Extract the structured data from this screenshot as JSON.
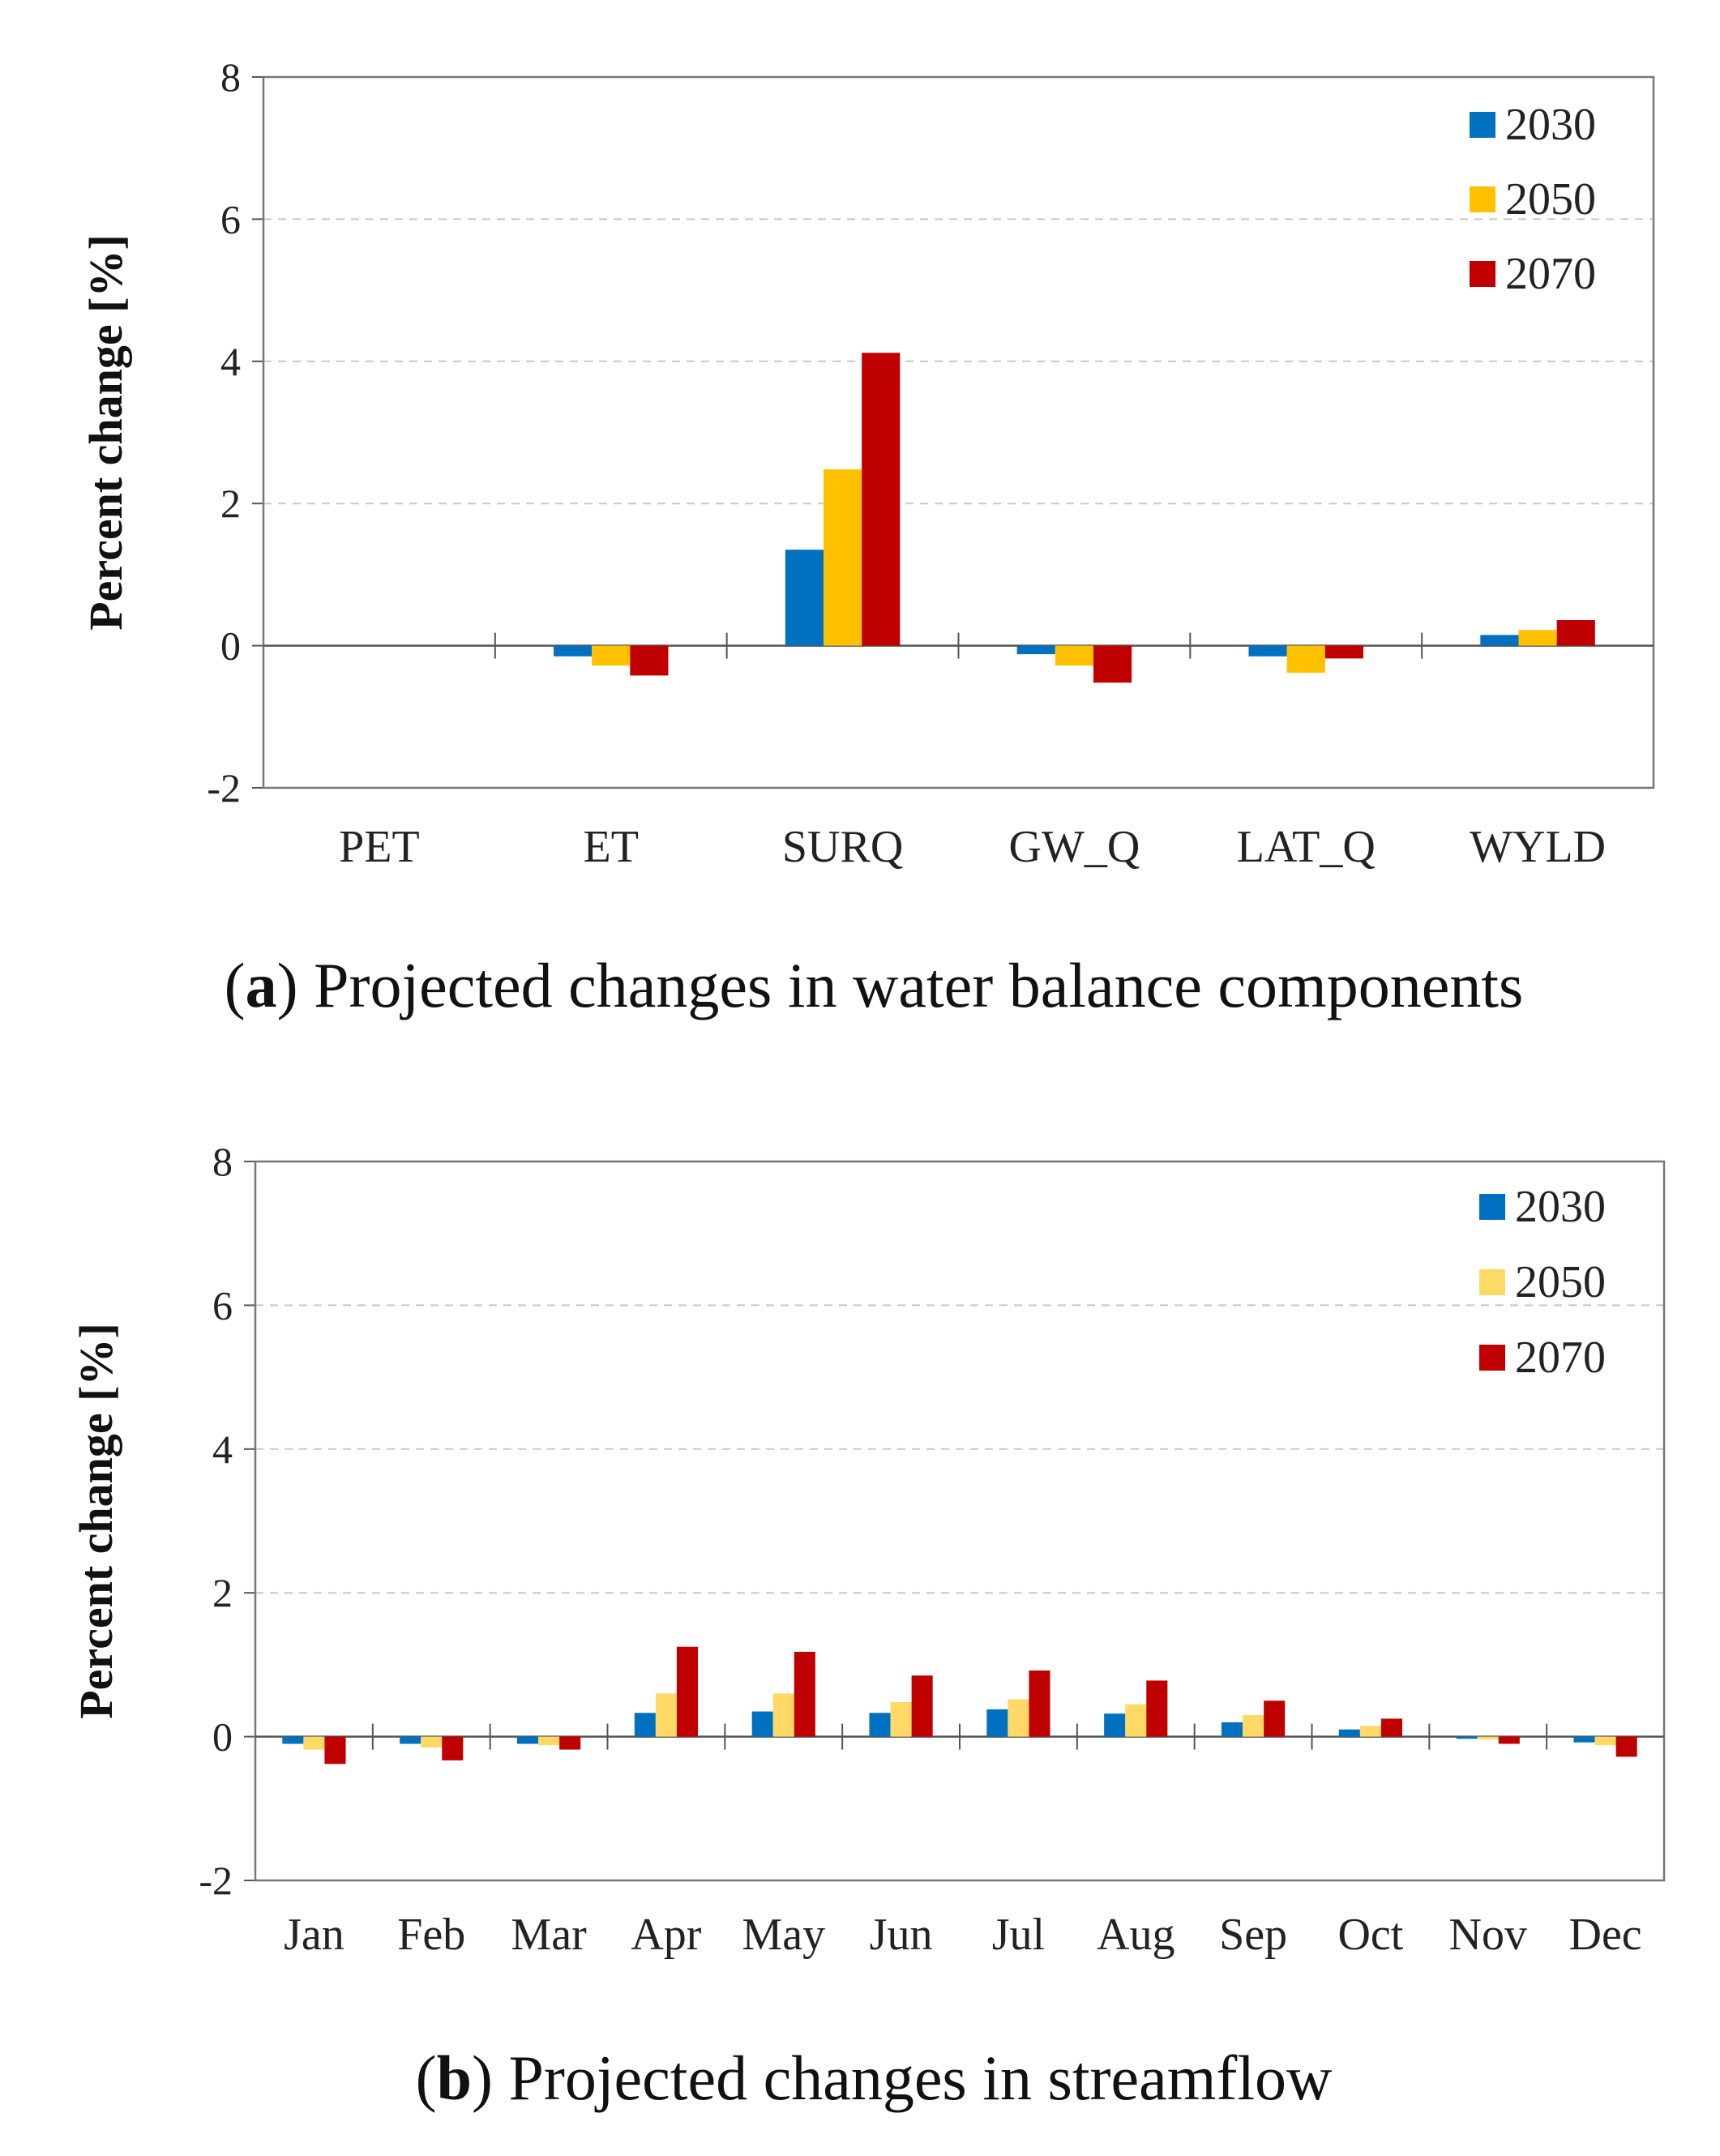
{
  "chart_data": [
    {
      "type": "bar",
      "caption_letter": "a",
      "caption_text": "Projected changes in water balance components",
      "ylabel": "Percent change [%]",
      "ylim": [
        -2,
        8
      ],
      "yticks": [
        "-2",
        "0",
        "2",
        "4",
        "6",
        "8"
      ],
      "grid": true,
      "legend_position": "top-right",
      "categories": [
        "PET",
        "ET",
        "SURQ",
        "GW_Q",
        "LAT_Q",
        "WYLD"
      ],
      "series": [
        {
          "name": "2030",
          "color": "#0070C0",
          "values": [
            0,
            -0.15,
            1.35,
            -0.12,
            -0.15,
            0.15
          ]
        },
        {
          "name": "2050",
          "color": "#FFC000",
          "values": [
            0,
            -0.28,
            2.48,
            -0.28,
            -0.38,
            0.22
          ]
        },
        {
          "name": "2070",
          "color": "#C00000",
          "values": [
            0,
            -0.42,
            4.12,
            -0.52,
            -0.18,
            0.36
          ]
        }
      ]
    },
    {
      "type": "bar",
      "caption_letter": "b",
      "caption_text": "Projected changes in streamflow",
      "ylabel": "Percent change [%]",
      "ylim": [
        -2,
        8
      ],
      "yticks": [
        "-2",
        "0",
        "2",
        "4",
        "6",
        "8"
      ],
      "grid": true,
      "legend_position": "top-right",
      "categories": [
        "Jan",
        "Feb",
        "Mar",
        "Apr",
        "May",
        "Jun",
        "Jul",
        "Aug",
        "Sep",
        "Oct",
        "Nov",
        "Dec"
      ],
      "series": [
        {
          "name": "2030",
          "color": "#0070C0",
          "values": [
            -0.1,
            -0.1,
            -0.1,
            0.33,
            0.35,
            0.33,
            0.38,
            0.32,
            0.2,
            0.1,
            -0.03,
            -0.08
          ]
        },
        {
          "name": "2050",
          "color": "#FFD966",
          "values": [
            -0.18,
            -0.15,
            -0.12,
            0.6,
            0.6,
            0.48,
            0.52,
            0.45,
            0.3,
            0.15,
            -0.04,
            -0.12
          ]
        },
        {
          "name": "2070",
          "color": "#C00000",
          "values": [
            -0.38,
            -0.33,
            -0.18,
            1.25,
            1.18,
            0.85,
            0.92,
            0.78,
            0.5,
            0.25,
            -0.1,
            -0.28
          ]
        }
      ]
    }
  ]
}
